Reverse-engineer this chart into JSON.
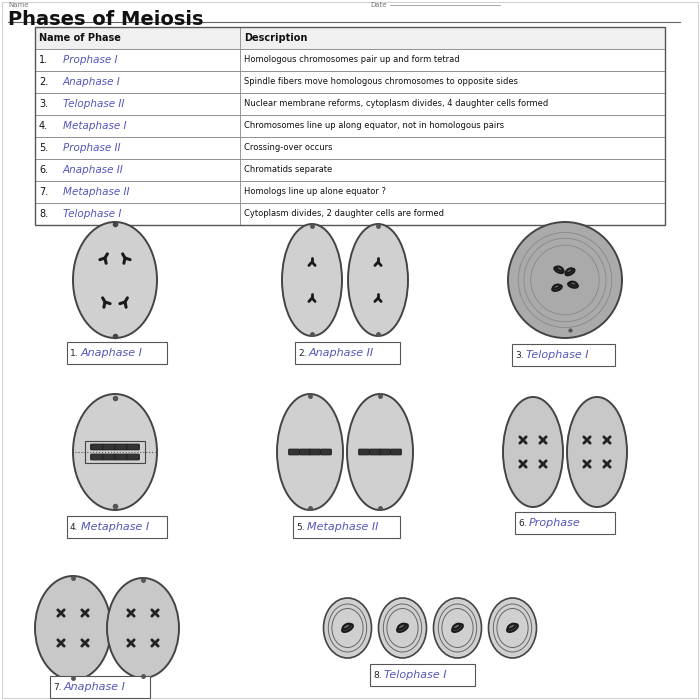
{
  "title": "Phases of Meiosis",
  "bg": "#ffffff",
  "table_header": [
    "Name of Phase",
    "Description"
  ],
  "table_rows": [
    [
      "1.",
      "Prophase I",
      "Homologous chromosomes pair up and form tetrad"
    ],
    [
      "2.",
      "Anaphase I",
      "Spindle fibers move homologous chromosomes to opposite sides"
    ],
    [
      "3.",
      "Telophase II",
      "Nuclear membrane reforms, cytoplasm divides, 4 daughter cells formed"
    ],
    [
      "4.",
      "Metaphase I",
      "Chromosomes line up along equator, not in homologous pairs"
    ],
    [
      "5.",
      "Prophase II",
      "Crossing-over occurs"
    ],
    [
      "6.",
      "Anaphase II",
      "Chromatids separate"
    ],
    [
      "7.",
      "Metaphase II",
      "Homologs line up alone equator ?"
    ],
    [
      "8.",
      "Telophase I",
      "Cytoplasm divides, 2 daughter cells are formed"
    ]
  ],
  "hw_color": "#5555bb",
  "txt_color": "#111111",
  "cell_fill": "#c0c0c0",
  "cell_edge": "#333333"
}
